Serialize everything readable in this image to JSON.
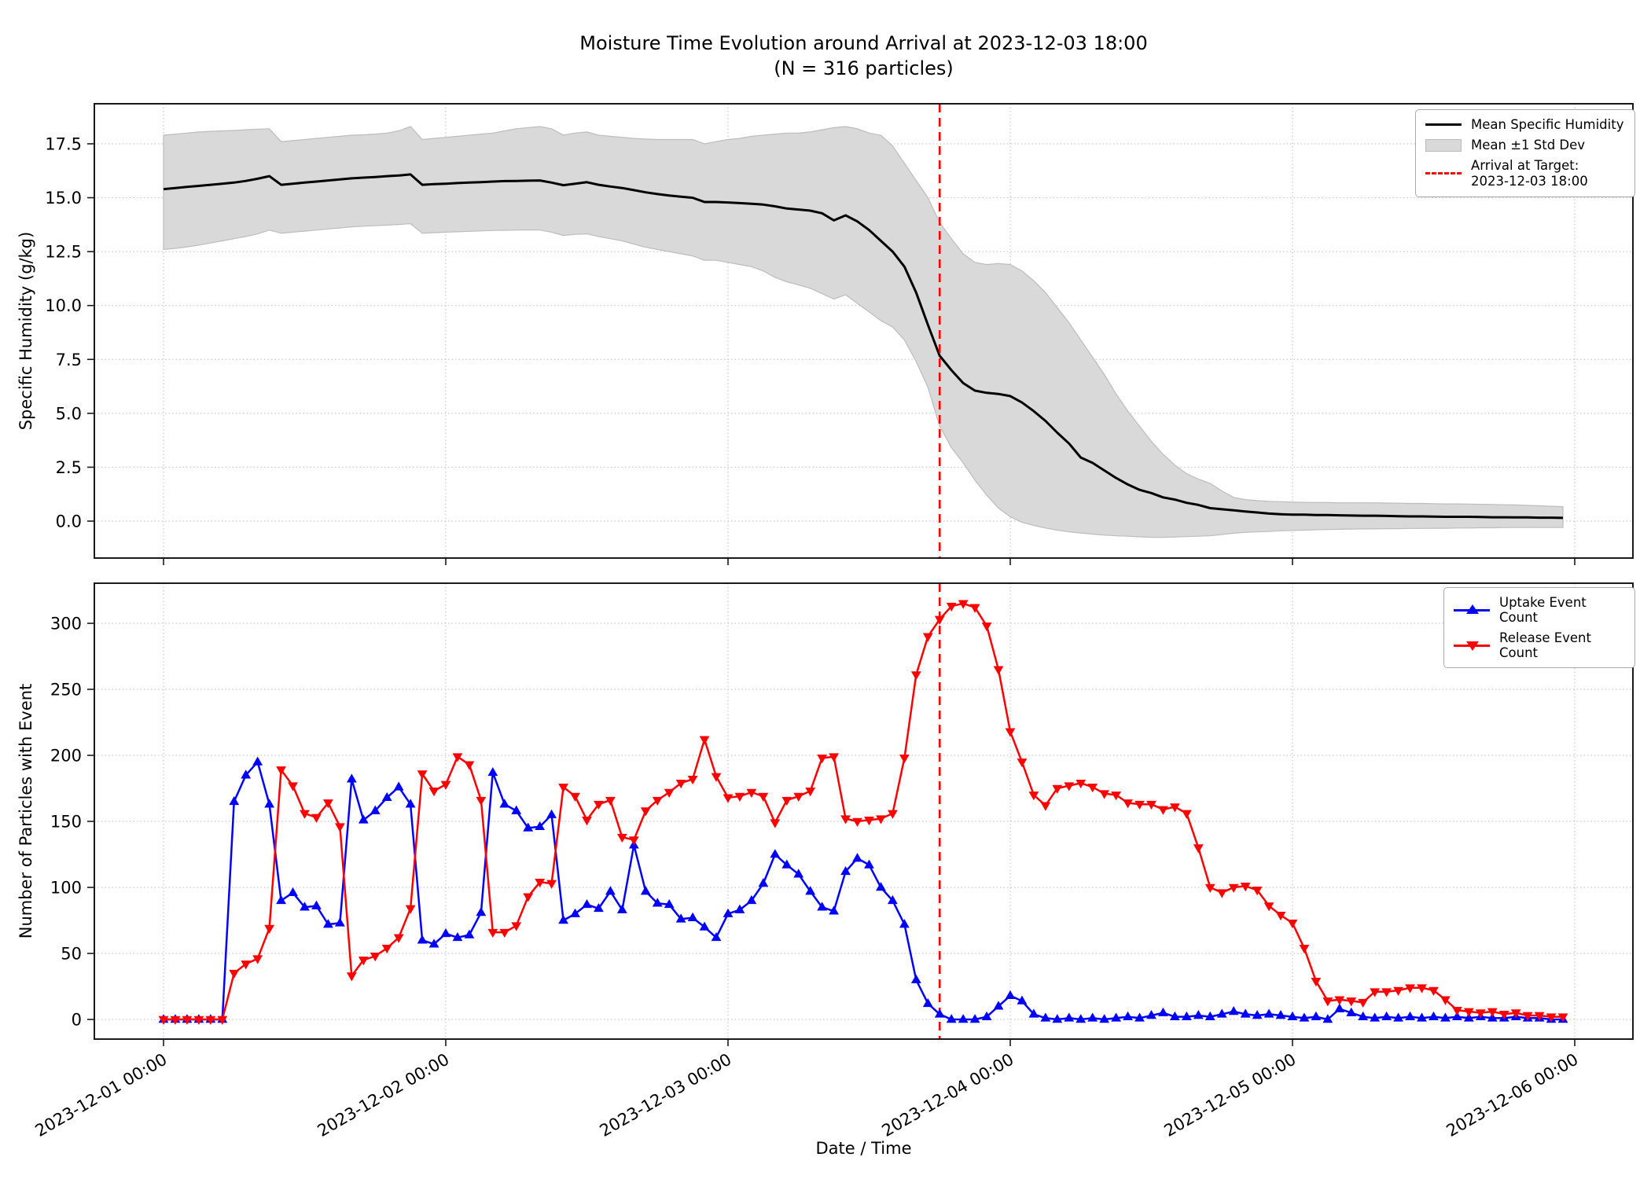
{
  "figure": {
    "title_line1": "Moisture Time Evolution around Arrival at 2023-12-03 18:00",
    "title_line2": "(N = 316 particles)",
    "background": "#ffffff"
  },
  "colors": {
    "mean_line": "#000000",
    "std_band": "#d9d9d9",
    "std_band_edge": "#bdbdbd",
    "arrival_line": "#ff0000",
    "uptake": "#0000ff",
    "release": "#ff0000",
    "grid": "#c9c9c9",
    "spine": "#1a1a1a"
  },
  "chart_data": [
    {
      "type": "line",
      "title": "Moisture Time Evolution around Arrival at 2023-12-03 18:00",
      "subtitle": "(N = 316 particles)",
      "xlabel": "",
      "ylabel": "Specific Humidity (g/kg)",
      "x_start": "2023-12-01 00:00",
      "x_step_hours": 1,
      "n_points": 120,
      "ylim": [
        -1.7,
        19.3
      ],
      "yticks": {
        "values": [
          0,
          2.5,
          5,
          7.5,
          10,
          12.5,
          15,
          17.5
        ],
        "labels": [
          "0.0",
          "2.5",
          "5.0",
          "7.5",
          "10.0",
          "12.5",
          "15.0",
          "17.5"
        ]
      },
      "grid": true,
      "legend_position": "upper right",
      "legend": [
        {
          "label": "Mean Specific Humidity"
        },
        {
          "label": "Mean ±1 Std Dev"
        },
        {
          "label_line1": "Arrival at Target:",
          "label_line2": "2023-12-03 18:00"
        }
      ],
      "annotations": [
        {
          "name": "Arrival at Target",
          "type": "vline",
          "x": "2023-12-03 18:00",
          "hour_index": 66,
          "color": "#ff0000",
          "style": "dashed"
        }
      ],
      "series": [
        {
          "name": "Mean Specific Humidity",
          "color": "#000000",
          "values": [
            15.4,
            15.45,
            15.5,
            15.55,
            15.6,
            15.65,
            15.7,
            15.78,
            15.88,
            16.0,
            15.6,
            15.65,
            15.7,
            15.75,
            15.8,
            15.85,
            15.9,
            15.93,
            15.96,
            16.0,
            16.03,
            16.08,
            15.6,
            15.63,
            15.65,
            15.68,
            15.7,
            15.72,
            15.75,
            15.77,
            15.78,
            15.79,
            15.8,
            15.7,
            15.58,
            15.65,
            15.72,
            15.6,
            15.52,
            15.45,
            15.35,
            15.25,
            15.17,
            15.1,
            15.05,
            15.0,
            14.8,
            14.8,
            14.78,
            14.75,
            14.72,
            14.68,
            14.6,
            14.5,
            14.45,
            14.4,
            14.28,
            13.95,
            14.18,
            13.9,
            13.5,
            13.0,
            12.5,
            11.8,
            10.6,
            9.1,
            7.67,
            7.0,
            6.4,
            6.05,
            5.95,
            5.9,
            5.8,
            5.5,
            5.1,
            4.65,
            4.1,
            3.6,
            2.95,
            2.7,
            2.35,
            2.0,
            1.7,
            1.45,
            1.3,
            1.1,
            1.0,
            0.85,
            0.75,
            0.6,
            0.55,
            0.5,
            0.45,
            0.4,
            0.35,
            0.32,
            0.3,
            0.3,
            0.28,
            0.28,
            0.27,
            0.26,
            0.25,
            0.25,
            0.24,
            0.23,
            0.22,
            0.22,
            0.21,
            0.2,
            0.2,
            0.2,
            0.19,
            0.18,
            0.18,
            0.17,
            0.17,
            0.16,
            0.16,
            0.15
          ]
        },
        {
          "name": "Mean +1 Std Dev (band upper)",
          "color": "#d9d9d9",
          "values": [
            17.9,
            17.95,
            18.0,
            18.05,
            18.08,
            18.1,
            18.12,
            18.15,
            18.18,
            18.2,
            17.6,
            17.65,
            17.7,
            17.75,
            17.8,
            17.85,
            17.9,
            17.92,
            17.95,
            18.0,
            18.1,
            18.3,
            17.7,
            17.75,
            17.8,
            17.85,
            17.9,
            17.95,
            18.0,
            18.1,
            18.2,
            18.25,
            18.3,
            18.2,
            17.9,
            18.0,
            18.05,
            17.9,
            17.85,
            17.8,
            17.75,
            17.72,
            17.7,
            17.7,
            17.7,
            17.7,
            17.5,
            17.6,
            17.7,
            17.75,
            17.85,
            17.9,
            17.95,
            18.0,
            18.0,
            18.05,
            18.15,
            18.25,
            18.3,
            18.2,
            18.0,
            17.9,
            17.4,
            16.6,
            15.8,
            15.0,
            13.85,
            13.1,
            12.4,
            12.0,
            11.9,
            11.95,
            11.9,
            11.6,
            11.15,
            10.6,
            9.9,
            9.2,
            8.4,
            7.6,
            6.8,
            5.9,
            5.1,
            4.4,
            3.7,
            3.1,
            2.6,
            2.2,
            1.95,
            1.75,
            1.4,
            1.1,
            1.0,
            0.95,
            0.92,
            0.9,
            0.88,
            0.87,
            0.86,
            0.86,
            0.85,
            0.85,
            0.85,
            0.85,
            0.84,
            0.83,
            0.82,
            0.82,
            0.81,
            0.8,
            0.8,
            0.79,
            0.78,
            0.77,
            0.76,
            0.75,
            0.73,
            0.71,
            0.69,
            0.67
          ]
        },
        {
          "name": "Mean -1 Std Dev (band lower)",
          "color": "#d9d9d9",
          "values": [
            12.6,
            12.65,
            12.72,
            12.8,
            12.9,
            13.0,
            13.1,
            13.2,
            13.32,
            13.5,
            13.35,
            13.4,
            13.45,
            13.5,
            13.55,
            13.6,
            13.65,
            13.68,
            13.7,
            13.73,
            13.76,
            13.8,
            13.35,
            13.38,
            13.4,
            13.42,
            13.44,
            13.46,
            13.48,
            13.49,
            13.5,
            13.5,
            13.5,
            13.4,
            13.25,
            13.3,
            13.32,
            13.2,
            13.1,
            13.0,
            12.85,
            12.7,
            12.6,
            12.5,
            12.4,
            12.3,
            12.1,
            12.1,
            12.0,
            11.9,
            11.8,
            11.6,
            11.3,
            11.1,
            10.95,
            10.8,
            10.55,
            10.3,
            10.5,
            10.1,
            9.7,
            9.3,
            9.0,
            8.4,
            7.4,
            6.2,
            4.4,
            3.4,
            2.7,
            1.9,
            1.2,
            0.6,
            0.2,
            -0.05,
            -0.2,
            -0.32,
            -0.42,
            -0.5,
            -0.55,
            -0.6,
            -0.65,
            -0.68,
            -0.7,
            -0.73,
            -0.75,
            -0.75,
            -0.74,
            -0.72,
            -0.7,
            -0.68,
            -0.62,
            -0.56,
            -0.52,
            -0.5,
            -0.48,
            -0.45,
            -0.43,
            -0.42,
            -0.4,
            -0.39,
            -0.38,
            -0.37,
            -0.36,
            -0.36,
            -0.35,
            -0.35,
            -0.34,
            -0.34,
            -0.33,
            -0.33,
            -0.32,
            -0.32,
            -0.31,
            -0.31,
            -0.3,
            -0.3,
            -0.3,
            -0.3,
            -0.3,
            -0.3
          ]
        }
      ]
    },
    {
      "type": "line",
      "title": "",
      "xlabel": "Date / Time",
      "ylabel": "Number of Particles with Event",
      "x_start": "2023-12-01 00:00",
      "x_step_hours": 1,
      "n_points": 120,
      "ylim": [
        -15,
        330
      ],
      "yticks": {
        "values": [
          0,
          50,
          100,
          150,
          200,
          250,
          300
        ],
        "labels": [
          "0",
          "50",
          "100",
          "150",
          "200",
          "250",
          "300"
        ]
      },
      "xticks": {
        "labels": [
          "2023-12-01 00:00",
          "2023-12-02 00:00",
          "2023-12-03 00:00",
          "2023-12-04 00:00",
          "2023-12-05 00:00",
          "2023-12-06 00:00"
        ],
        "days": [
          0,
          1,
          2,
          3,
          4,
          5
        ]
      },
      "grid": true,
      "legend_position": "upper right",
      "legend": [
        {
          "label": "Uptake Event Count"
        },
        {
          "label": "Release Event Count"
        }
      ],
      "annotations": [
        {
          "name": "Arrival at Target",
          "type": "vline",
          "x": "2023-12-03 18:00",
          "hour_index": 66,
          "color": "#ff0000",
          "style": "dashed"
        }
      ],
      "series": [
        {
          "name": "Uptake Event Count",
          "color": "#0000ff",
          "marker": "triangle-up",
          "values": [
            0,
            0,
            0,
            0,
            0,
            0,
            165,
            185,
            195,
            163,
            90,
            96,
            85,
            86,
            72,
            73,
            182,
            151,
            158,
            168,
            176,
            163,
            60,
            57,
            65,
            62,
            64,
            81,
            187,
            163,
            158,
            145,
            146,
            155,
            75,
            80,
            87,
            84,
            97,
            83,
            132,
            97,
            88,
            87,
            76,
            77,
            70,
            62,
            80,
            83,
            90,
            103,
            125,
            117,
            110,
            97,
            85,
            82,
            112,
            122,
            117,
            100,
            90,
            72,
            30,
            12,
            4,
            0,
            0,
            0,
            2,
            10,
            18,
            14,
            4,
            1,
            0,
            1,
            0,
            1,
            0,
            1,
            2,
            1,
            3,
            5,
            2,
            2,
            3,
            2,
            4,
            6,
            4,
            3,
            4,
            3,
            2,
            1,
            2,
            0,
            8,
            5,
            2,
            1,
            2,
            1,
            2,
            1,
            2,
            1,
            2,
            1,
            2,
            1,
            1,
            2,
            1,
            1,
            0,
            0
          ]
        },
        {
          "name": "Release Event Count",
          "color": "#ff0000",
          "marker": "triangle-down",
          "values": [
            0,
            0,
            0,
            0,
            0,
            0,
            35,
            42,
            46,
            69,
            189,
            177,
            156,
            153,
            164,
            146,
            33,
            45,
            48,
            54,
            62,
            84,
            186,
            173,
            178,
            199,
            193,
            166,
            66,
            66,
            71,
            93,
            104,
            103,
            176,
            169,
            151,
            163,
            166,
            138,
            136,
            158,
            166,
            172,
            179,
            182,
            212,
            184,
            168,
            169,
            172,
            169,
            149,
            166,
            169,
            173,
            198,
            199,
            152,
            150,
            151,
            152,
            156,
            198,
            261,
            290,
            303,
            313,
            315,
            312,
            298,
            265,
            218,
            195,
            170,
            162,
            175,
            177,
            179,
            176,
            171,
            170,
            164,
            163,
            163,
            159,
            161,
            156,
            130,
            100,
            96,
            100,
            101,
            98,
            86,
            79,
            73,
            54,
            29,
            14,
            15,
            14,
            13,
            21,
            21,
            22,
            24,
            24,
            22,
            15,
            7,
            6,
            5,
            6,
            4,
            5,
            3,
            3,
            2,
            2
          ]
        }
      ]
    }
  ]
}
